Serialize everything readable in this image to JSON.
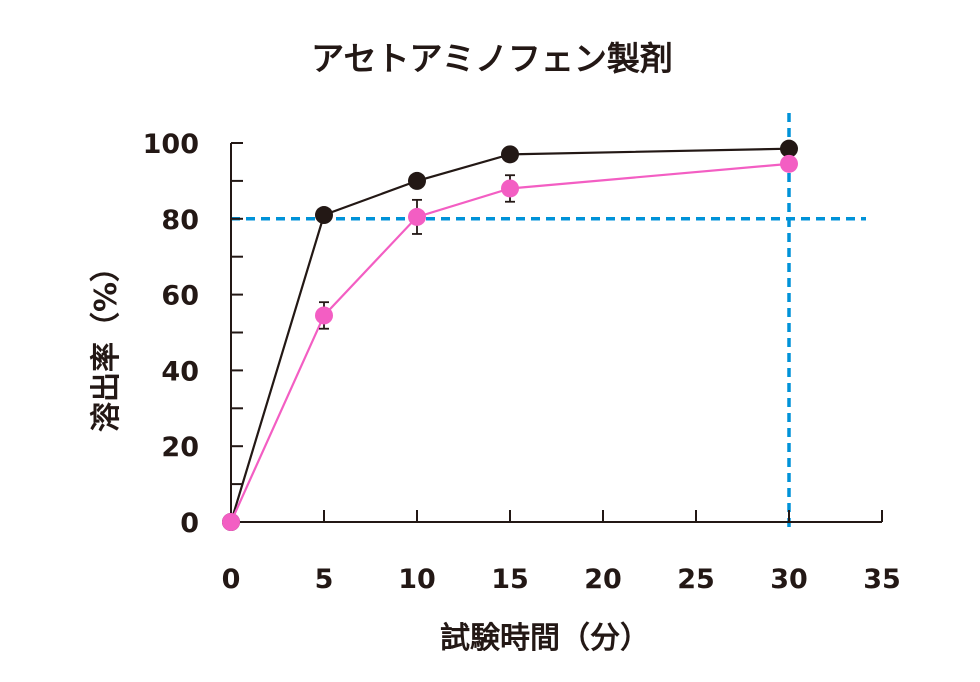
{
  "chart_data": {
    "type": "line",
    "title": "アセトアミノフェン製剤",
    "xlabel": "試験時間（分）",
    "ylabel": "溶出率（%）",
    "xlim": [
      0,
      35
    ],
    "ylim": [
      0,
      100
    ],
    "x_ticks": [
      "0",
      "5",
      "10",
      "15",
      "20",
      "25",
      "30",
      "35"
    ],
    "y_ticks": [
      "0",
      "20",
      "40",
      "60",
      "80",
      "100"
    ],
    "grid": false,
    "reference_lines": [
      {
        "orientation": "horizontal",
        "value": 80,
        "style": "dashed",
        "color": "#0092d8"
      },
      {
        "orientation": "vertical",
        "value": 30,
        "style": "dashed",
        "color": "#0092d8"
      }
    ],
    "series": [
      {
        "color": "#231815",
        "x": [
          0,
          5,
          10,
          15,
          30
        ],
        "values": [
          0,
          81,
          90,
          97,
          98.5
        ],
        "error": [
          0,
          0,
          0,
          0,
          0
        ]
      },
      {
        "color": "#f35ec3",
        "x": [
          0,
          5,
          10,
          15,
          30
        ],
        "values": [
          0,
          54.5,
          80.5,
          88,
          94.5
        ],
        "error": [
          0,
          3.5,
          4.5,
          3.5,
          0
        ]
      }
    ]
  }
}
